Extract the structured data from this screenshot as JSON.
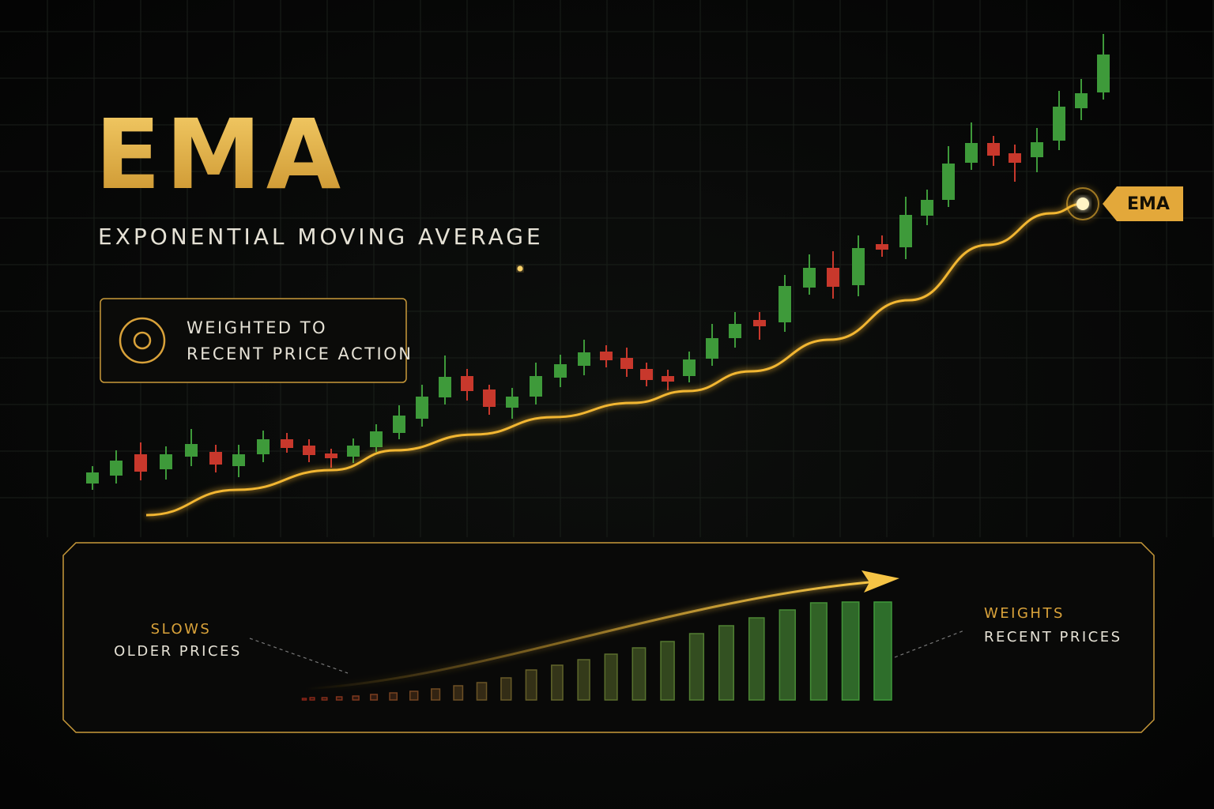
{
  "title": "EMA",
  "subtitle": "EXPONENTIAL MOVING AVERAGE",
  "callout": [
    "WEIGHTED TO",
    "RECENT PRICE ACTION"
  ],
  "left_note": [
    "SLOWS",
    "OLDER PRICES"
  ],
  "right_note": [
    "WEIGHTS",
    "RECENT PRICES"
  ],
  "chart_data": [
    {
      "type": "candlestick",
      "up_color": "#3e9a3a",
      "down_color": "#c8382c",
      "xlim": [
        0,
        1536
      ],
      "ylim": [
        0,
        700
      ],
      "x": [
        117,
        147,
        178,
        210,
        242,
        273,
        302,
        333,
        363,
        391,
        419,
        447,
        476,
        505,
        534,
        563,
        591,
        619,
        648,
        678,
        709,
        739,
        767,
        793,
        818,
        845,
        872,
        901,
        930,
        961,
        993,
        1024,
        1054,
        1086,
        1116,
        1146,
        1173,
        1200,
        1229,
        1257,
        1284,
        1312,
        1340,
        1368,
        1396
      ],
      "open": [
        88,
        98,
        125,
        106,
        122,
        128,
        110,
        125,
        144,
        136,
        126,
        122,
        134,
        152,
        170,
        197,
        224,
        207,
        184,
        198,
        222,
        237,
        255,
        247,
        233,
        224,
        224,
        246,
        272,
        295,
        292,
        336,
        361,
        339,
        391,
        387,
        427,
        447,
        494,
        519,
        506,
        501,
        522,
        563,
        583
      ],
      "high": [
        110,
        130,
        140,
        135,
        157,
        137,
        137,
        155,
        152,
        144,
        132,
        145,
        163,
        187,
        213,
        250,
        233,
        213,
        209,
        241,
        251,
        270,
        263,
        260,
        241,
        232,
        255,
        290,
        305,
        305,
        352,
        378,
        382,
        402,
        402,
        451,
        460,
        515,
        545,
        528,
        517,
        538,
        585,
        600,
        657
      ],
      "low": [
        80,
        88,
        92,
        93,
        110,
        102,
        96,
        115,
        127,
        115,
        108,
        114,
        128,
        144,
        160,
        188,
        193,
        175,
        170,
        188,
        210,
        225,
        235,
        223,
        211,
        206,
        216,
        237,
        260,
        270,
        280,
        327,
        322,
        325,
        375,
        372,
        415,
        438,
        485,
        490,
        470,
        482,
        510,
        548,
        574
      ],
      "close": [
        102,
        117,
        103,
        125,
        138,
        112,
        125,
        144,
        133,
        124,
        120,
        136,
        154,
        174,
        198,
        223,
        205,
        185,
        198,
        224,
        239,
        254,
        244,
        233,
        219,
        217,
        245,
        272,
        290,
        287,
        338,
        361,
        337,
        386,
        384,
        428,
        447,
        493,
        519,
        503,
        494,
        520,
        565,
        582,
        631
      ],
      "ema": {
        "name": "EMA",
        "color": "#f2b631",
        "x": [
          185,
          300,
          420,
          500,
          600,
          700,
          800,
          870,
          950,
          1050,
          1150,
          1250,
          1330,
          1370
        ],
        "values": [
          48,
          80,
          105,
          130,
          150,
          172,
          190,
          205,
          230,
          270,
          320,
          390,
          430,
          442
        ]
      }
    },
    {
      "type": "bar",
      "color_from": "#8a2418",
      "color_to": "#3f9a3a",
      "ylim": [
        0,
        130
      ],
      "categories": [
        null,
        null,
        null,
        null,
        null,
        null,
        null,
        null,
        null,
        null,
        null,
        null,
        null,
        null,
        null,
        null,
        null,
        null,
        null,
        null,
        null,
        null,
        null,
        null,
        null
      ],
      "values": [
        2,
        3,
        3,
        4,
        5,
        7,
        9,
        11,
        14,
        18,
        22,
        28,
        38,
        44,
        51,
        58,
        66,
        74,
        84,
        94,
        104,
        114,
        123,
        124,
        124
      ]
    }
  ]
}
